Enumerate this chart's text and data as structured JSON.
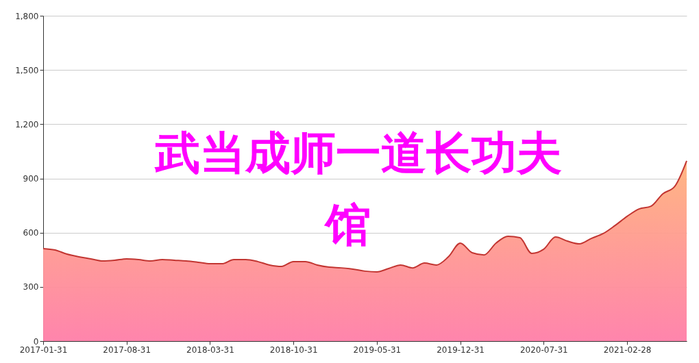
{
  "chart_data": {
    "type": "area",
    "title": "武当成师一道长功夫馆",
    "categories": [
      "2017-01-31",
      null,
      null,
      null,
      null,
      null,
      null,
      "2017-08-31",
      null,
      null,
      null,
      null,
      null,
      null,
      "2018-03-31",
      null,
      null,
      null,
      null,
      null,
      null,
      "2018-10-31",
      null,
      null,
      null,
      null,
      null,
      null,
      "2019-05-31",
      null,
      null,
      null,
      null,
      null,
      null,
      "2019-12-31",
      null,
      null,
      null,
      null,
      null,
      null,
      "2020-07-31",
      null,
      null,
      null,
      null,
      null,
      null,
      "2021-02-28",
      null,
      null,
      null,
      null,
      null
    ],
    "series": [
      {
        "color": "#c23531",
        "values": [
          512,
          504,
          481,
          466,
          455,
          443,
          447,
          455,
          451,
          443,
          451,
          447,
          443,
          436,
          428,
          428,
          451,
          451,
          440,
          421,
          413,
          440,
          440,
          421,
          409,
          405,
          398,
          387,
          383,
          402,
          421,
          405,
          432,
          421,
          466,
          542,
          489,
          477,
          542,
          580,
          572,
          485,
          508,
          576,
          553,
          538,
          568,
          595,
          640,
          690,
          731,
          746,
          815,
          856,
          997
        ]
      }
    ],
    "ylim": [
      0,
      1800
    ],
    "yticks": [
      0,
      300,
      600,
      900,
      {
        "value": 1200,
        "label": "1,200"
      },
      {
        "value": 1500,
        "label": "1,500"
      },
      {
        "value": 1800,
        "label": "1,800"
      }
    ],
    "grid": "y"
  }
}
